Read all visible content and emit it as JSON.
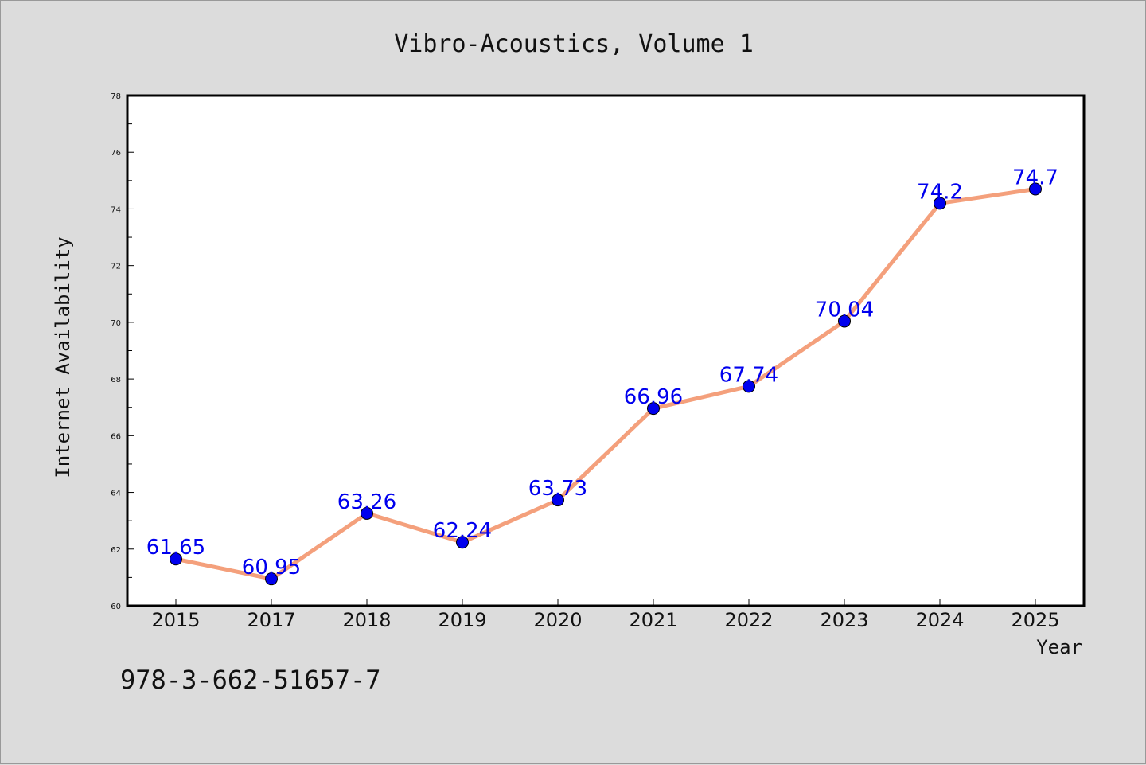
{
  "footer": {
    "isbn": "978-3-662-51657-7"
  },
  "chart_data": {
    "type": "line",
    "title": "Vibro-Acoustics, Volume 1",
    "xlabel": "Year",
    "ylabel": "Internet Availability",
    "categories": [
      "2015",
      "2017",
      "2018",
      "2019",
      "2020",
      "2021",
      "2022",
      "2023",
      "2024",
      "2025"
    ],
    "series": [
      {
        "values": [
          61.65,
          60.95,
          63.26,
          62.24,
          63.73,
          66.96,
          67.74,
          70.04,
          74.2,
          74.7
        ],
        "line_color": "#f4a07c",
        "marker_color": "#0000ee"
      }
    ],
    "data_labels": [
      "61.65",
      "60.95",
      "63.26",
      "62.24",
      "63.73",
      "66.96",
      "67.74",
      "70.04",
      "74.2",
      "74.7"
    ],
    "ylim": [
      60,
      78
    ],
    "yticks": [
      60,
      62,
      64,
      66,
      68,
      70,
      72,
      74,
      76,
      78
    ],
    "grid": false,
    "legend": "none"
  }
}
